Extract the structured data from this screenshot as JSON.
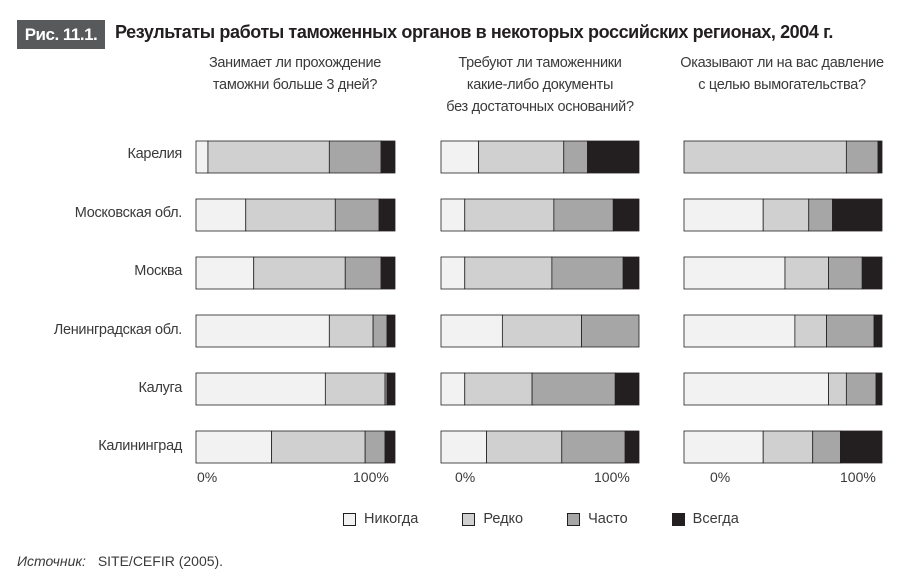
{
  "figure": {
    "badge": "Рис. 11.1.",
    "title": "Результаты работы таможенных органов в некоторых российских регионах, 2004 г."
  },
  "source": {
    "label": "Источник:",
    "text": "SITE/CEFIR (2005)."
  },
  "colors": {
    "never": "#f2f2f2",
    "rarely": "#d0d0d0",
    "often": "#a6a6a6",
    "always": "#231f20",
    "border": "#231f20"
  },
  "chart_data": {
    "type": "bar",
    "stacked": true,
    "orientation": "horizontal",
    "percent": true,
    "categories": [
      "Карелия",
      "Московская обл.",
      "Москва",
      "Ленинградская обл.",
      "Калуга",
      "Калининград"
    ],
    "legend": [
      "Никогда",
      "Редко",
      "Часто",
      "Всегда"
    ],
    "xticks": [
      "0%",
      "100%"
    ],
    "xlim": [
      0,
      100
    ],
    "grid": false,
    "legend_position": "bottom",
    "panels": [
      {
        "title_lines": [
          "Занимает ли прохождение",
          "таможни больше 3 дней?"
        ],
        "series": [
          {
            "name": "Никогда",
            "values": [
              6,
              25,
              29,
              67,
              65,
              38
            ]
          },
          {
            "name": "Редко",
            "values": [
              61,
              45,
              46,
              22,
              30,
              47
            ]
          },
          {
            "name": "Часто",
            "values": [
              26,
              22,
              18,
              7,
              1,
              10
            ]
          },
          {
            "name": "Всегда",
            "values": [
              7,
              8,
              7,
              4,
              4,
              5
            ]
          }
        ]
      },
      {
        "title_lines": [
          "Требуют ли таможенники",
          "какие-либо документы",
          "без достаточных оснований?"
        ],
        "series": [
          {
            "name": "Никогда",
            "values": [
              19,
              12,
              12,
              31,
              12,
              23
            ]
          },
          {
            "name": "Редко",
            "values": [
              43,
              45,
              44,
              40,
              34,
              38
            ]
          },
          {
            "name": "Часто",
            "values": [
              12,
              30,
              36,
              29,
              42,
              32
            ]
          },
          {
            "name": "Всегда",
            "values": [
              26,
              13,
              8,
              0,
              12,
              7
            ]
          }
        ]
      },
      {
        "title_lines": [
          "Оказывают ли на вас давление",
          "с целью вымогательства?"
        ],
        "series": [
          {
            "name": "Никогда",
            "values": [
              0,
              40,
              51,
              56,
              73,
              40
            ]
          },
          {
            "name": "Редко",
            "values": [
              82,
              23,
              22,
              16,
              9,
              25
            ]
          },
          {
            "name": "Часто",
            "values": [
              16,
              12,
              17,
              24,
              15,
              14
            ]
          },
          {
            "name": "Всегда",
            "values": [
              2,
              25,
              10,
              4,
              3,
              21
            ]
          }
        ]
      }
    ]
  }
}
